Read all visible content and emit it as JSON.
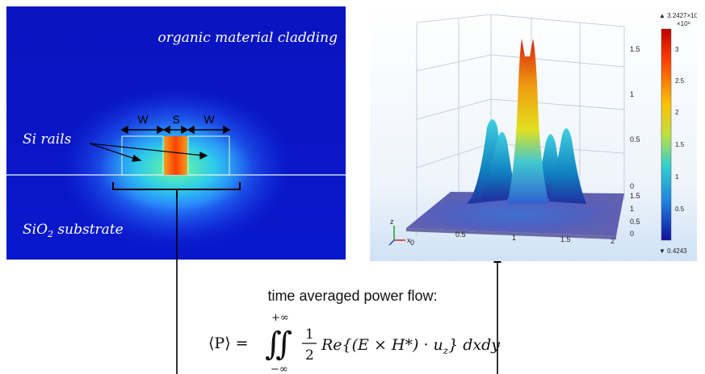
{
  "left_panel": {
    "cladding_label": "organic material cladding",
    "rails_label": "Si rails",
    "substrate_label_pre": "SiO",
    "substrate_label_sub": "2",
    "substrate_label_post": " substrate",
    "w_left": "W",
    "s_label": "S",
    "w_right": "W"
  },
  "right_panel": {
    "z_ticks": [
      "1.5",
      "1",
      "0.5",
      "0"
    ],
    "y_ticks": [
      "1.5",
      "1",
      "0.5",
      "0"
    ],
    "x_ticks": [
      "0",
      "0.5",
      "1",
      "1.5",
      "2"
    ],
    "colorbar_max": "▲ 3.2427×10⁸",
    "colorbar_exp": "×10⁸",
    "colorbar_ticks": [
      "3",
      "2.5",
      "2",
      "1.5",
      "1",
      "0.5"
    ],
    "colorbar_min": "▼ 0.4243",
    "axis_z": "z",
    "axis_x": "x"
  },
  "caption": "time averaged power flow:",
  "formula": {
    "lhs": "⟨P⟩ =",
    "upper_limit": "+∞",
    "lower_limit": "−∞",
    "integral": "∬",
    "frac_num": "1",
    "frac_den": "2",
    "body": "Re{(E × H*) · u",
    "body_sub": "z",
    "tail": "} dxdy"
  },
  "colors": {
    "field_background": "#0a16c8",
    "hot_core": "#f05010",
    "glow": "#30a0ff",
    "arrow": "#000000"
  }
}
